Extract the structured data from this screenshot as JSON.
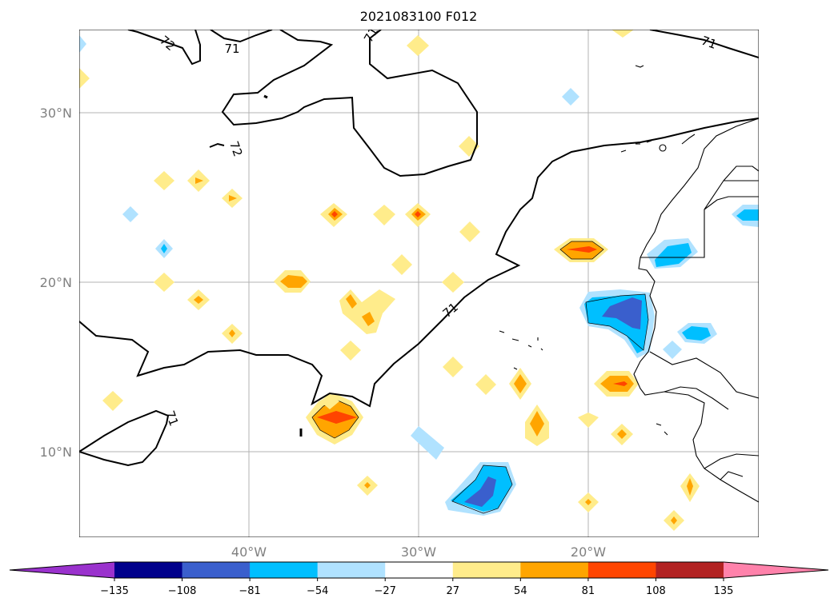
{
  "title": "2021083100 F012",
  "map": {
    "lat_labels": [
      "30°N",
      "20°N",
      "10°N"
    ],
    "lon_labels": [
      "40°W",
      "30°W",
      "20°W"
    ],
    "contour_labels": [
      "71",
      "72",
      "71",
      "71",
      "72",
      "71",
      "71"
    ]
  },
  "colorbar": {
    "ticks": [
      "−135",
      "−108",
      "−81",
      "−54",
      "−27",
      "27",
      "54",
      "81",
      "108",
      "135"
    ],
    "colors": [
      "#9a32cd",
      "#00008b",
      "#3a5fcd",
      "#00bfff",
      "#b0e2ff",
      "#ffffff",
      "#ffec8b",
      "#ffa500",
      "#ff4500",
      "#b22222",
      "#ff82ab"
    ]
  },
  "colors": {
    "neg_light": "#b0e2ff",
    "neg_mid": "#00bfff",
    "neg_dark": "#3a5fcd",
    "pos_light": "#ffec8b",
    "pos_mid": "#ffa500",
    "pos_dark": "#ff4500"
  }
}
